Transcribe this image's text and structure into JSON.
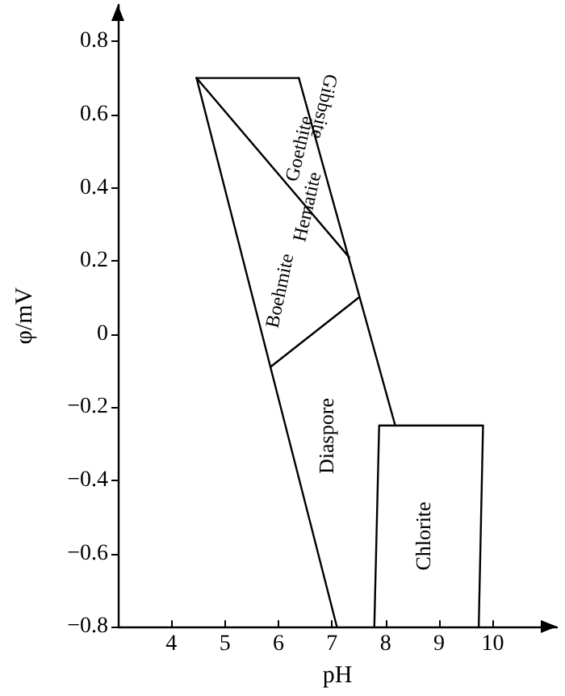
{
  "chart_data": {
    "type": "line",
    "xlabel": "pH",
    "ylabel": "φ/mV",
    "xlim": [
      3,
      11.2
    ],
    "xticks": [
      4,
      5,
      6,
      7,
      8,
      9,
      10
    ],
    "ylim": [
      -0.8,
      0.9
    ],
    "yticks": [
      {
        "value": -0.8,
        "label": "−0.8"
      },
      {
        "value": -0.6,
        "label": "−0.6"
      },
      {
        "value": -0.4,
        "label": "−0.4"
      },
      {
        "value": -0.2,
        "label": "−0.2"
      },
      0,
      0.2,
      0.4,
      0.6,
      0.8
    ],
    "grid": false,
    "marker": "none",
    "line_style": "solid",
    "series": [
      {
        "color": "#000000",
        "x": [
          4.47,
          6.38
        ],
        "values": [
          0.7,
          0.7
        ]
      },
      {
        "color": "#000000",
        "x": [
          4.47,
          7.09
        ],
        "values": [
          0.7,
          -0.8
        ]
      },
      {
        "color": "#000000",
        "x": [
          6.38,
          8.18
        ],
        "values": [
          0.7,
          -0.25
        ]
      },
      {
        "color": "#000000",
        "x": [
          4.47,
          7.32
        ],
        "values": [
          0.7,
          0.21
        ]
      },
      {
        "color": "#000000",
        "x": [
          5.85,
          7.5
        ],
        "values": [
          -0.09,
          0.1
        ]
      },
      {
        "color": "#000000",
        "x": [
          7.79,
          7.88,
          9.82,
          9.74
        ],
        "values": [
          -0.8,
          -0.25,
          -0.25,
          -0.8
        ]
      }
    ],
    "annotations": [
      "Boehmite",
      "Hematite",
      "Goethite",
      "Gibbsite",
      "Diaspore",
      "Chlorite"
    ]
  }
}
